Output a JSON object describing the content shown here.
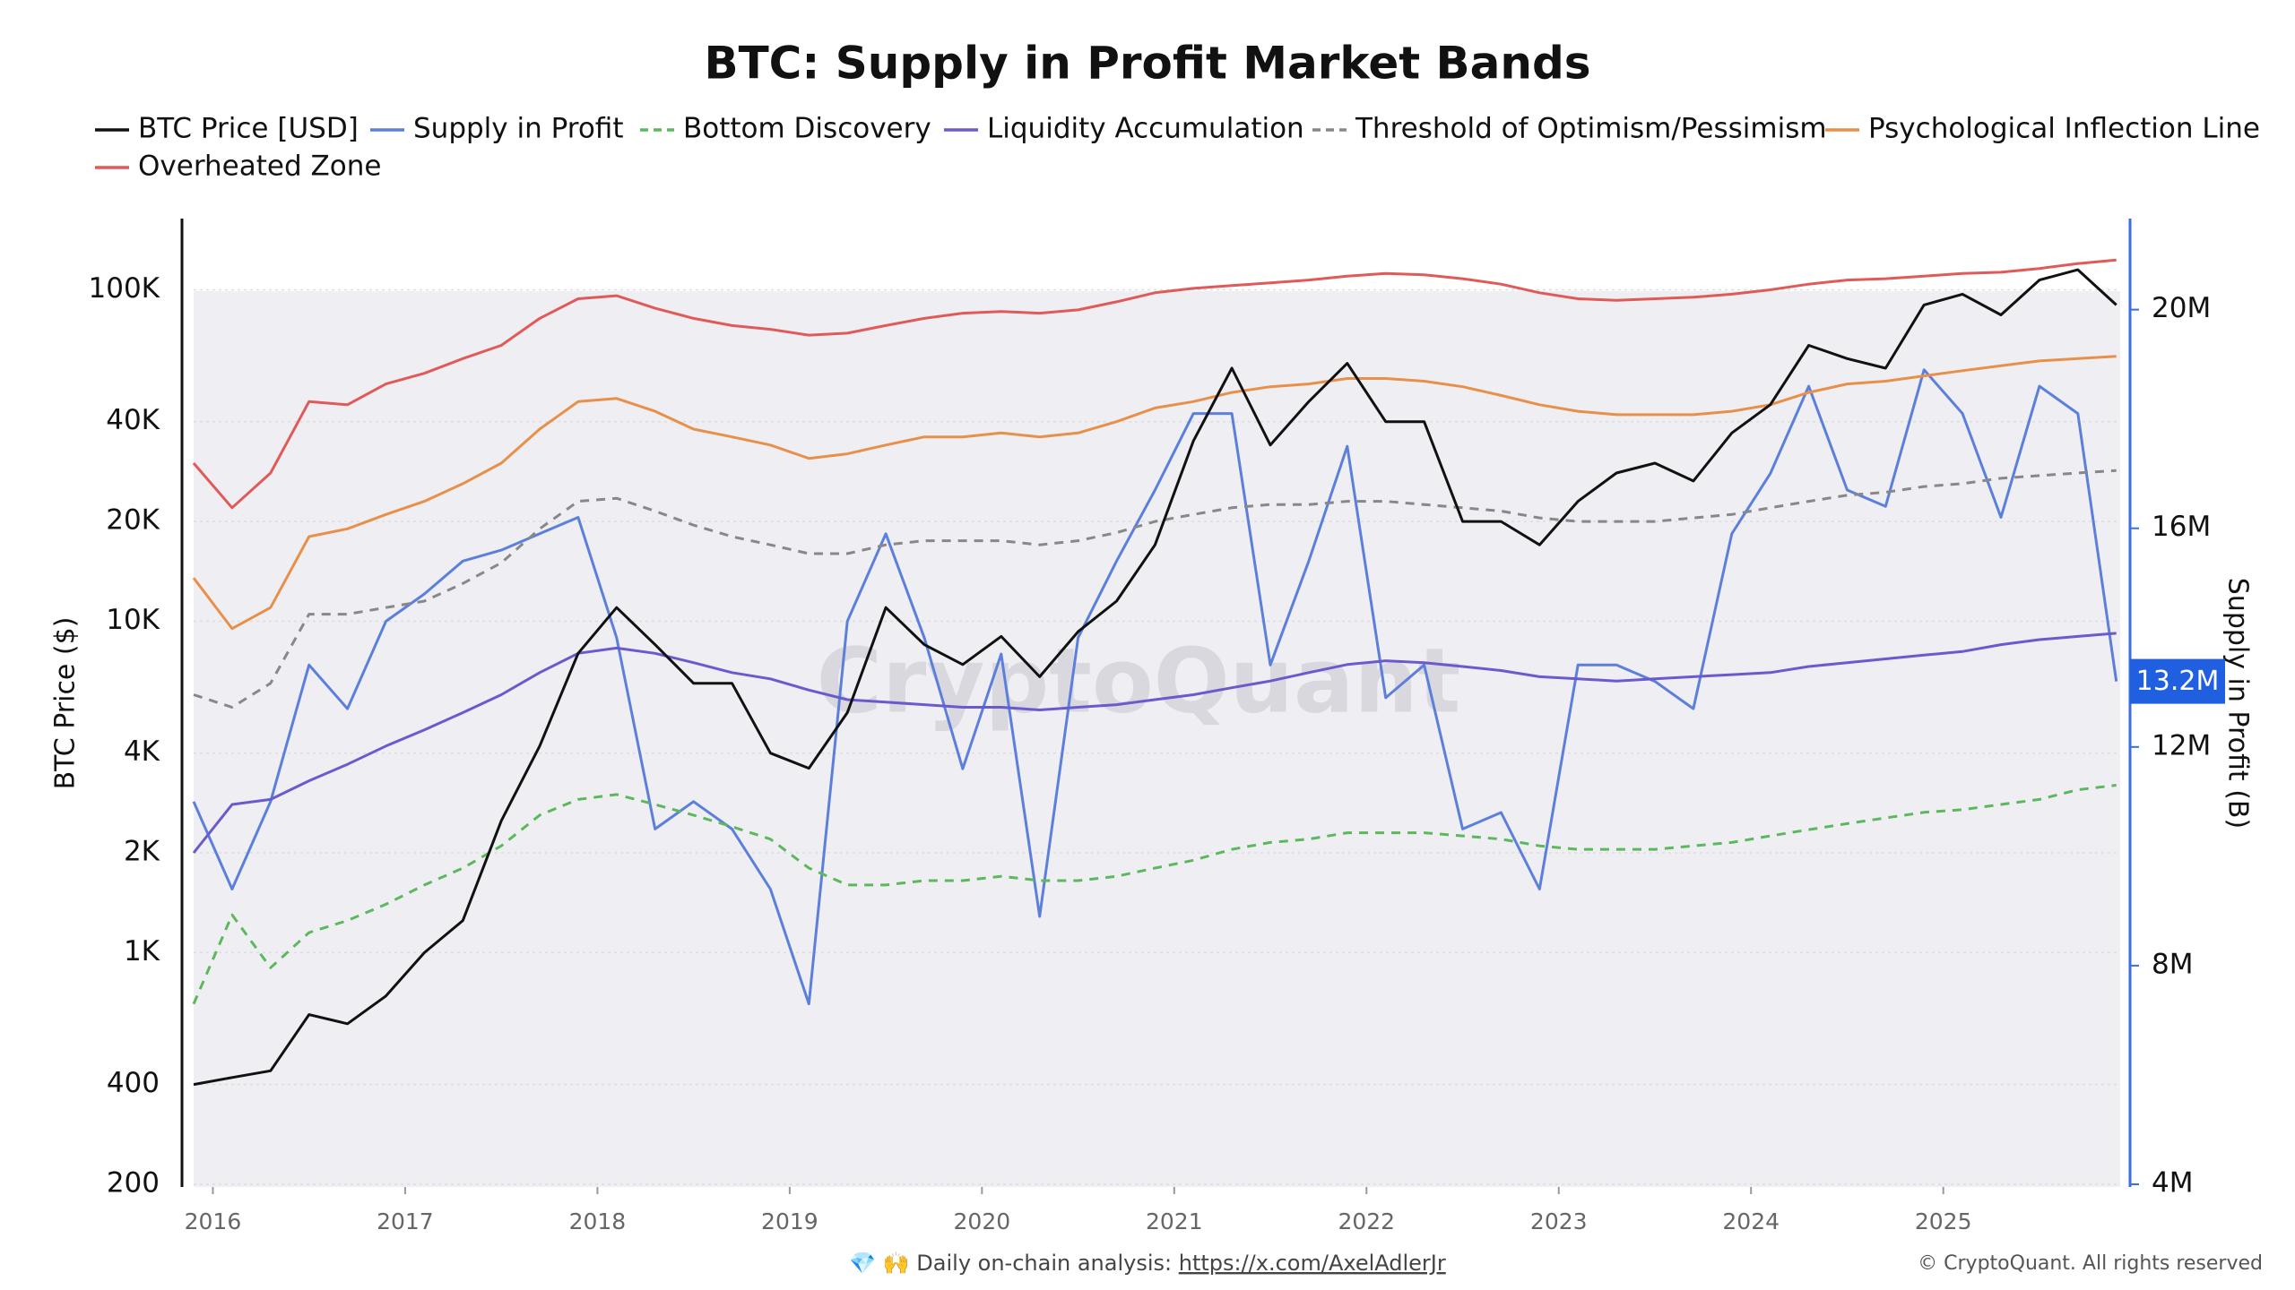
{
  "chart_data": {
    "type": "line",
    "title": "BTC: Supply in Profit Market Bands",
    "y_label": "BTC Price ($)",
    "y2_label": "Supply in Profit (B)",
    "watermark": "CryptoQuant",
    "log_scale": true,
    "grid": true,
    "legend": "top",
    "xlim": [
      2015.9,
      2025.92
    ],
    "xticks": [
      2016,
      2017,
      2018,
      2019,
      2020,
      2021,
      2022,
      2023,
      2024,
      2025
    ],
    "ylim": [
      200,
      160000
    ],
    "yticks": [
      200,
      400,
      {
        "value": 1000,
        "label": "1K"
      },
      {
        "value": 2000,
        "label": "2K"
      },
      {
        "value": 4000,
        "label": "4K"
      },
      {
        "value": 10000,
        "label": "10K"
      },
      {
        "value": 20000,
        "label": "20K"
      },
      {
        "value": 40000,
        "label": "40K"
      },
      {
        "value": 100000,
        "label": "100K"
      }
    ],
    "y2lim": [
      4000000,
      21600000
    ],
    "y2ticks": [
      {
        "value": 4000000,
        "label": "4M"
      },
      {
        "value": 8000000,
        "label": "8M"
      },
      {
        "value": 12000000,
        "label": "12M"
      },
      {
        "value": 16000000,
        "label": "16M"
      },
      {
        "value": 20000000,
        "label": "20M"
      }
    ],
    "last_value": {
      "value": 13200000,
      "label": "13.2M"
    },
    "x": [
      2015.9,
      2016.1,
      2016.3,
      2016.5,
      2016.7,
      2016.9,
      2017.1,
      2017.3,
      2017.5,
      2017.7,
      2017.9,
      2018.1,
      2018.3,
      2018.5,
      2018.7,
      2018.9,
      2019.1,
      2019.3,
      2019.5,
      2019.7,
      2019.9,
      2020.1,
      2020.3,
      2020.5,
      2020.7,
      2020.9,
      2021.1,
      2021.3,
      2021.5,
      2021.7,
      2021.9,
      2022.1,
      2022.3,
      2022.5,
      2022.7,
      2022.9,
      2023.1,
      2023.3,
      2023.5,
      2023.7,
      2023.9,
      2024.1,
      2024.3,
      2024.5,
      2024.7,
      2024.9,
      2025.1,
      2025.3,
      2025.5,
      2025.7,
      2025.9
    ],
    "series": [
      {
        "name": "BTC Price [USD]",
        "color": "#111111",
        "dash": false,
        "values": [
          400,
          420,
          440,
          650,
          610,
          740,
          1000,
          1250,
          2500,
          4200,
          8000,
          11000,
          8500,
          6500,
          6500,
          4000,
          3600,
          5300,
          11000,
          8500,
          7400,
          9000,
          6800,
          9300,
          11500,
          17000,
          35000,
          58000,
          34000,
          46000,
          60000,
          40000,
          40000,
          20000,
          20000,
          17000,
          23000,
          28000,
          30000,
          26500,
          37000,
          45000,
          68000,
          62000,
          58000,
          90000,
          97000,
          84000,
          107000,
          115000,
          90000
        ]
      },
      {
        "name": "Supply in Profit",
        "color": "#5b7fdb",
        "dash": false,
        "axis": "y2",
        "values": [
          11000000,
          9400000,
          11000000,
          13500000,
          12700000,
          14300000,
          14800000,
          15400000,
          15600000,
          15900000,
          16200000,
          14000000,
          10500000,
          11000000,
          10500000,
          9400000,
          7300000,
          14300000,
          15900000,
          14000000,
          11600000,
          13700000,
          8900000,
          14000000,
          15400000,
          16700000,
          18100000,
          18100000,
          13500000,
          15400000,
          17500000,
          12900000,
          13500000,
          10500000,
          10800000,
          9400000,
          13500000,
          13500000,
          13200000,
          12700000,
          15900000,
          17000000,
          18600000,
          16700000,
          16400000,
          18900000,
          18100000,
          16200000,
          18600000,
          18100000,
          13200000
        ]
      },
      {
        "name": "Bottom Discovery",
        "color": "#5cb85c",
        "dash": true,
        "values": [
          700,
          1300,
          900,
          1150,
          1250,
          1400,
          1600,
          1800,
          2100,
          2600,
          2900,
          3000,
          2800,
          2600,
          2400,
          2200,
          1800,
          1600,
          1600,
          1650,
          1650,
          1700,
          1650,
          1650,
          1700,
          1800,
          1900,
          2050,
          2150,
          2200,
          2300,
          2300,
          2300,
          2250,
          2200,
          2100,
          2050,
          2050,
          2050,
          2100,
          2150,
          2250,
          2350,
          2450,
          2550,
          2650,
          2700,
          2800,
          2900,
          3100,
          3200
        ]
      },
      {
        "name": "Liquidity Accumulation",
        "color": "#6a5acd",
        "dash": false,
        "values": [
          2000,
          2800,
          2900,
          3300,
          3700,
          4200,
          4700,
          5300,
          6000,
          7000,
          8000,
          8300,
          8000,
          7500,
          7000,
          6700,
          6200,
          5800,
          5700,
          5600,
          5500,
          5500,
          5400,
          5500,
          5600,
          5800,
          6000,
          6300,
          6600,
          7000,
          7400,
          7600,
          7500,
          7300,
          7100,
          6800,
          6700,
          6600,
          6700,
          6800,
          6900,
          7000,
          7300,
          7500,
          7700,
          7900,
          8100,
          8500,
          8800,
          9000,
          9200
        ]
      },
      {
        "name": "Threshold of Optimism/Pessimism",
        "color": "#888888",
        "dash": true,
        "values": [
          6000,
          5500,
          6500,
          10500,
          10500,
          11000,
          11500,
          13000,
          15000,
          19000,
          23000,
          23500,
          21500,
          19500,
          18000,
          17000,
          16000,
          16000,
          17000,
          17500,
          17500,
          17500,
          17000,
          17500,
          18500,
          20000,
          21000,
          22000,
          22500,
          22500,
          23000,
          23000,
          22500,
          22000,
          21500,
          20500,
          20000,
          20000,
          20000,
          20500,
          21000,
          22000,
          23000,
          24000,
          24500,
          25500,
          26000,
          27000,
          27500,
          28000,
          28500
        ]
      },
      {
        "name": "Psychological Inflection Line",
        "color": "#e8904a",
        "dash": false,
        "values": [
          13500,
          9500,
          11000,
          18000,
          19000,
          21000,
          23000,
          26000,
          30000,
          38000,
          46000,
          47000,
          43000,
          38000,
          36000,
          34000,
          31000,
          32000,
          34000,
          36000,
          36000,
          37000,
          36000,
          37000,
          40000,
          44000,
          46000,
          49000,
          51000,
          52000,
          54000,
          54000,
          53000,
          51000,
          48000,
          45000,
          43000,
          42000,
          42000,
          42000,
          43000,
          45000,
          49000,
          52000,
          53000,
          55000,
          57000,
          59000,
          61000,
          62000,
          63000
        ]
      },
      {
        "name": "Overheated Zone",
        "color": "#e05a5a",
        "dash": false,
        "values": [
          30000,
          22000,
          28000,
          46000,
          45000,
          52000,
          56000,
          62000,
          68000,
          82000,
          94000,
          96000,
          88000,
          82000,
          78000,
          76000,
          73000,
          74000,
          78000,
          82000,
          85000,
          86000,
          85000,
          87000,
          92000,
          98000,
          101000,
          103000,
          105000,
          107000,
          110000,
          112000,
          111000,
          108000,
          104000,
          98000,
          94000,
          93000,
          94000,
          95000,
          97000,
          100000,
          104000,
          107000,
          108000,
          110000,
          112000,
          113000,
          116000,
          120000,
          123000
        ]
      }
    ]
  },
  "footer": {
    "icons": "💎 🙌",
    "text": "Daily on-chain analysis:",
    "link": "https://x.com/AxelAdlerJr",
    "copyright": "© CryptoQuant. All rights reserved"
  }
}
